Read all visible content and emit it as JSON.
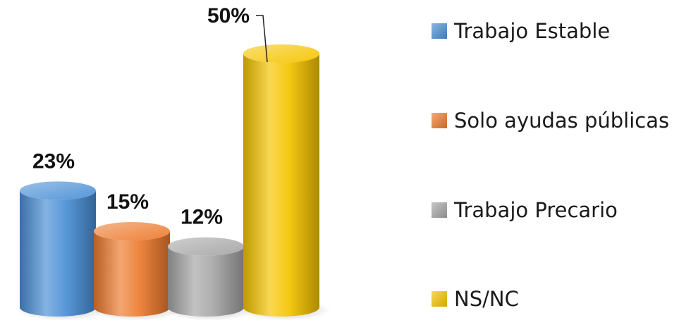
{
  "chart_data": {
    "type": "bar",
    "categories": [
      "Trabajo Estable",
      "Solo ayudas públicas",
      "Trabajo Precario",
      "NS/NC"
    ],
    "values": [
      23,
      15,
      12,
      50
    ],
    "value_labels": [
      "23%",
      "15%",
      "12%",
      "50%"
    ],
    "unit": "%",
    "title": "",
    "xlabel": "",
    "ylabel": "",
    "ylim": [
      0,
      50
    ],
    "grid": false,
    "legend_position": "right",
    "style": "3d-cylinder",
    "colors": [
      "#4a8fd6",
      "#ed7a2e",
      "#a6a6a6",
      "#f5c400"
    ]
  }
}
